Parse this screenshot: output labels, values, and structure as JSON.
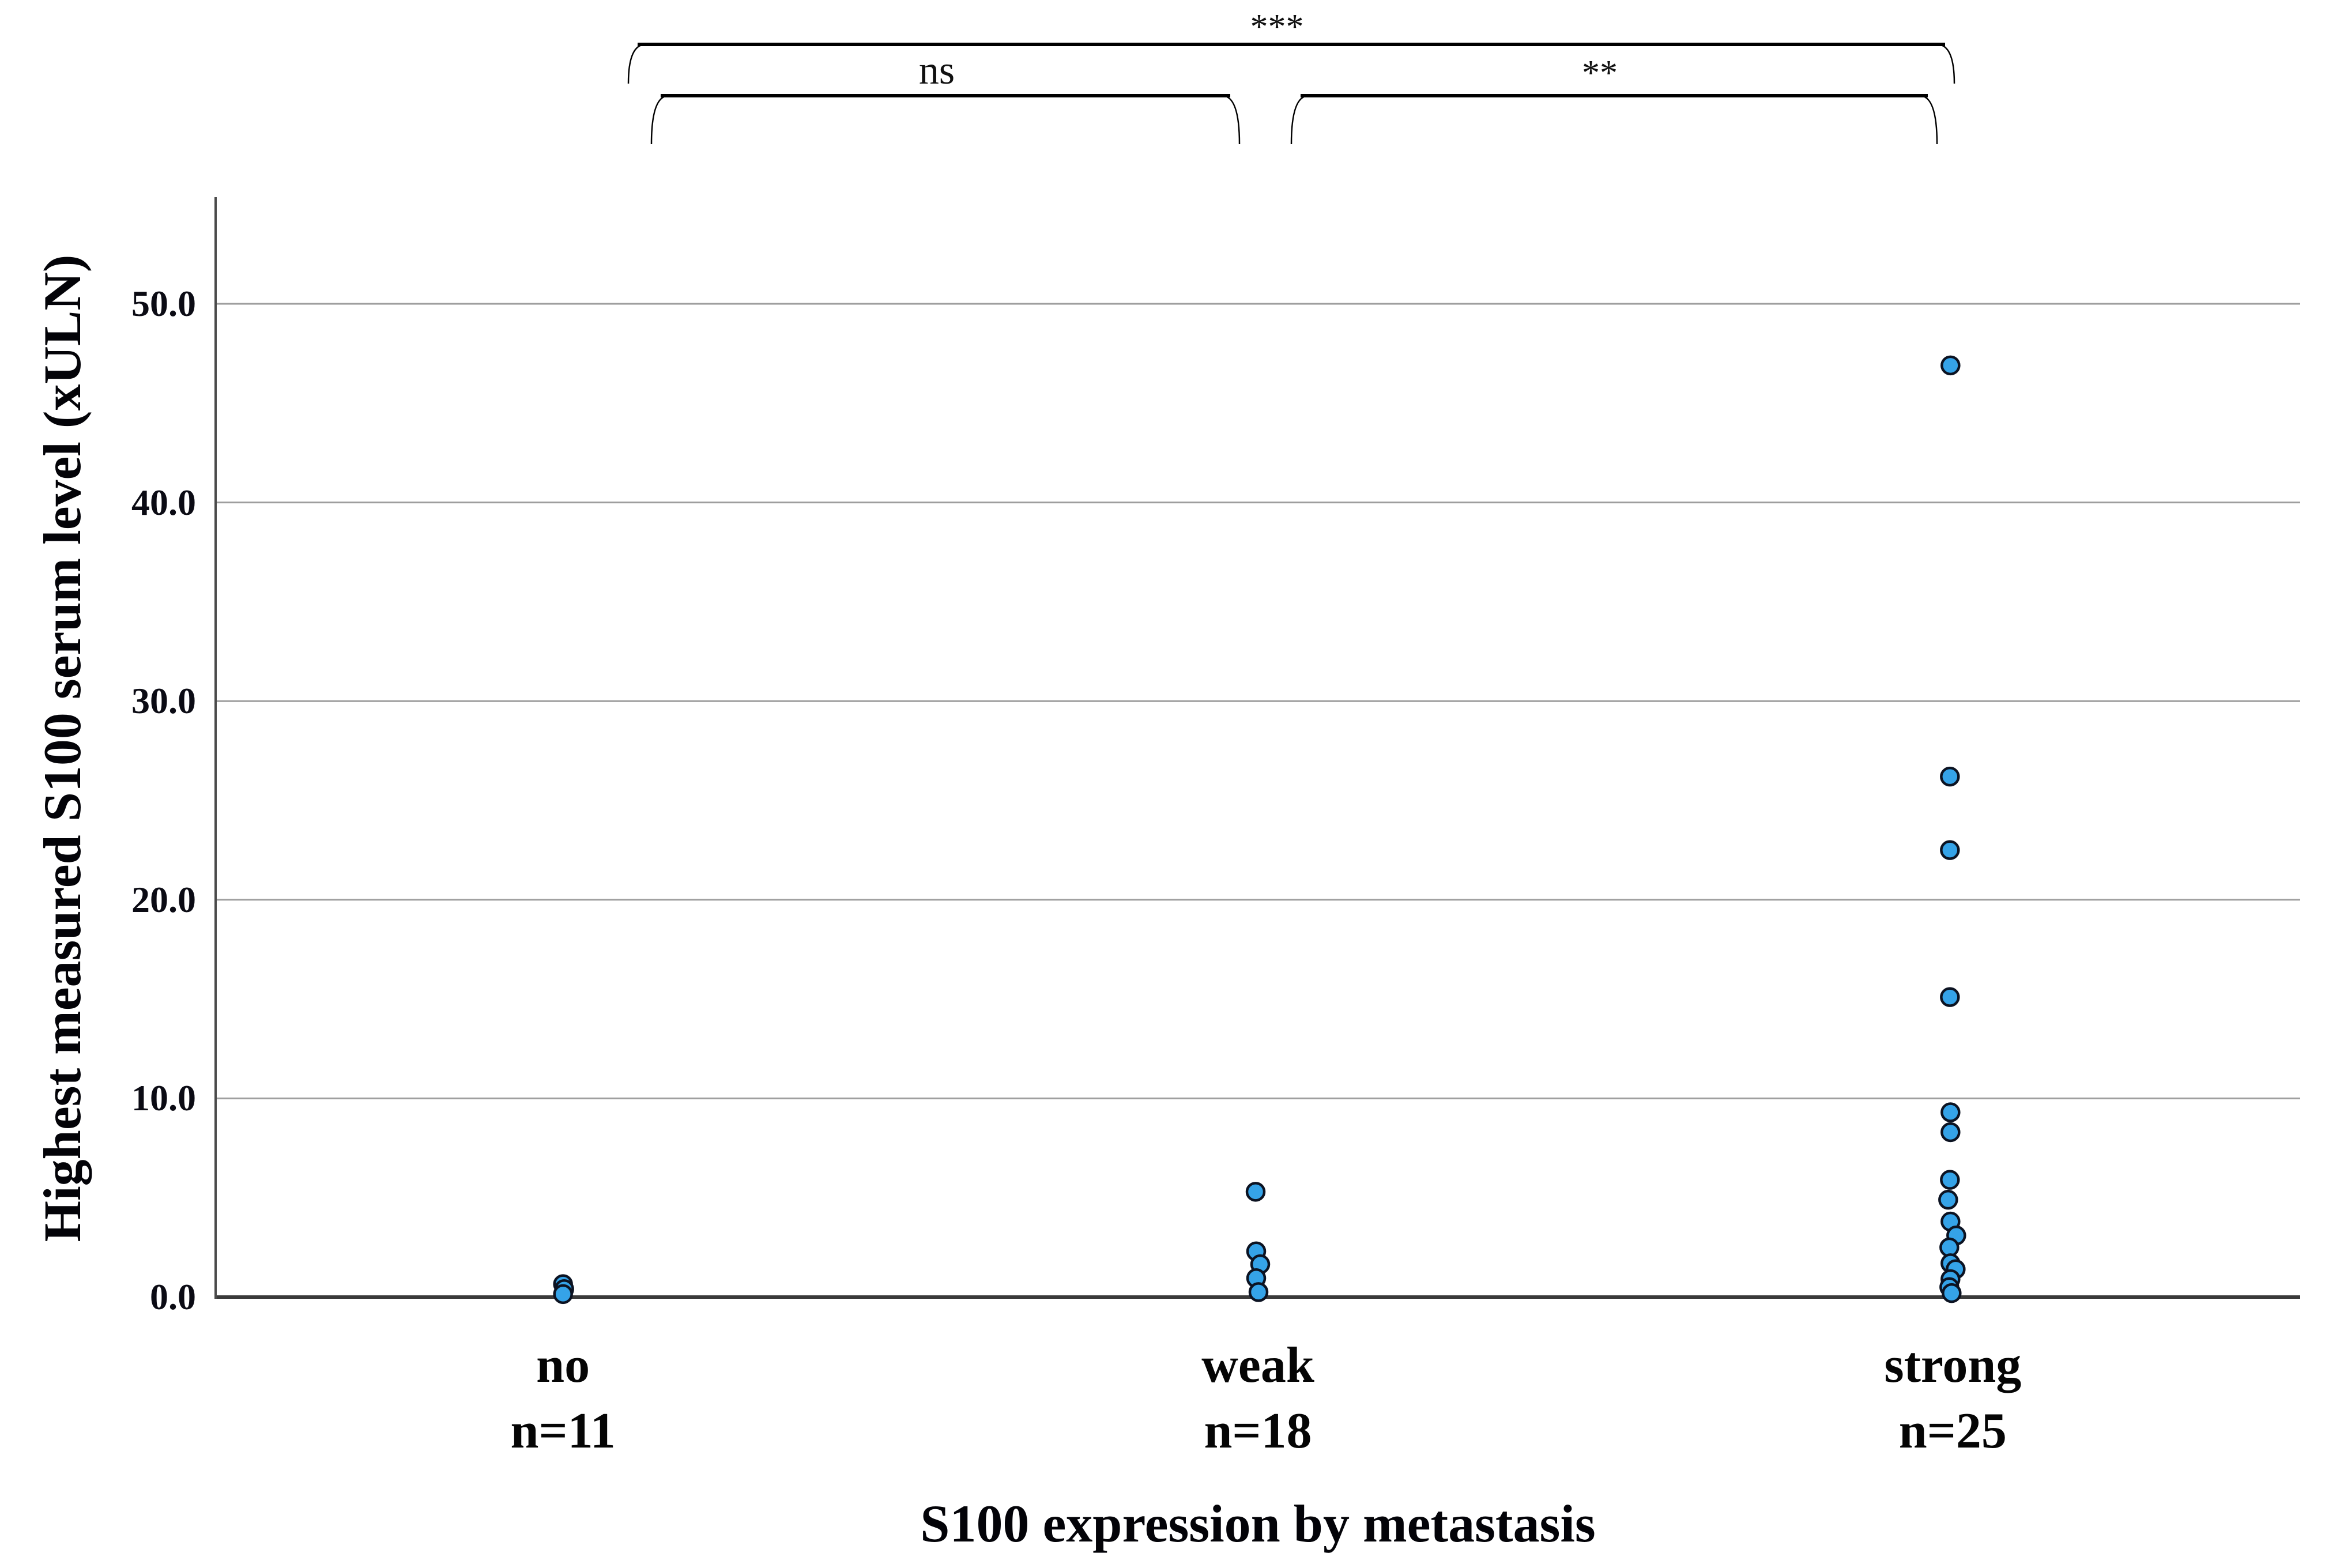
{
  "chart_data": {
    "type": "scatter",
    "variant": "categorical-dot-plot",
    "title": "",
    "xlabel": "S100 expression by metastasis",
    "ylabel": "Highest measured S100 serum level (xULN)",
    "ylim": [
      0,
      55.4
    ],
    "grid": "horizontal",
    "legend": "none",
    "yticks": [
      50,
      40,
      30,
      20,
      10,
      0
    ],
    "ytick_labels": [
      "50.0",
      "40.0",
      "30.0",
      "20.0",
      "10.0",
      "0.0"
    ],
    "categories": [
      "no",
      "weak",
      "strong"
    ],
    "series": [
      {
        "name": "no",
        "n": 11,
        "n_label": "n=11",
        "points": [
          {
            "v": 0.65,
            "dx": 0
          },
          {
            "v": 0.4,
            "dx": 2
          },
          {
            "v": 0.15,
            "dx": 0
          }
        ]
      },
      {
        "name": "weak",
        "n": 18,
        "n_label": "n=18",
        "points": [
          {
            "v": 5.3,
            "dx": -4
          },
          {
            "v": 2.3,
            "dx": -3
          },
          {
            "v": 1.65,
            "dx": 4
          },
          {
            "v": 0.95,
            "dx": -3
          },
          {
            "v": 0.25,
            "dx": 1
          }
        ]
      },
      {
        "name": "strong",
        "n": 25,
        "n_label": "n=25",
        "points": [
          {
            "v": 46.9,
            "dx": -4
          },
          {
            "v": 26.2,
            "dx": -5
          },
          {
            "v": 22.5,
            "dx": -5
          },
          {
            "v": 15.1,
            "dx": -5
          },
          {
            "v": 9.3,
            "dx": -4
          },
          {
            "v": 8.3,
            "dx": -4
          },
          {
            "v": 5.9,
            "dx": -5
          },
          {
            "v": 4.9,
            "dx": -8
          },
          {
            "v": 3.8,
            "dx": -4
          },
          {
            "v": 3.1,
            "dx": 6
          },
          {
            "v": 2.5,
            "dx": -6
          },
          {
            "v": 1.7,
            "dx": -4
          },
          {
            "v": 1.4,
            "dx": 5
          },
          {
            "v": 0.9,
            "dx": -4
          },
          {
            "v": 0.5,
            "dx": -6
          },
          {
            "v": 0.2,
            "dx": -2
          }
        ]
      }
    ],
    "significance_brackets": [
      {
        "groups": [
          "no",
          "strong"
        ],
        "label": "***"
      },
      {
        "groups": [
          "no",
          "weak"
        ],
        "label": "ns"
      },
      {
        "groups": [
          "weak",
          "strong"
        ],
        "label": "**"
      }
    ],
    "colors": {
      "marker_fill": "#35A3E8",
      "marker_edge": "#0C1322",
      "gridline": "#9E9E9E",
      "x_axis_line": "#3A3A3A",
      "y_axis_line": "#4A4A4A",
      "bracket": "#000000",
      "text": "#050505",
      "background": "#FFFFFF"
    }
  }
}
